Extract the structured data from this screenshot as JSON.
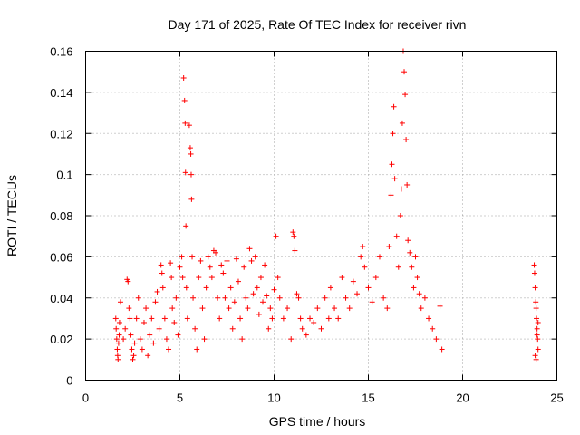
{
  "chart_data": {
    "type": "scatter",
    "title": "Day 171 of 2025, Rate Of TEC Index for receiver rivn",
    "xlabel": "GPS time / hours",
    "ylabel": "ROTI / TECUs",
    "xlim": [
      0,
      25
    ],
    "ylim": [
      0,
      0.16
    ],
    "xticks": [
      0,
      5,
      10,
      15,
      20,
      25
    ],
    "yticks": [
      0,
      0.02,
      0.04,
      0.06,
      0.08,
      0.1,
      0.12,
      0.14,
      0.16
    ],
    "xtick_labels": [
      "0",
      "5",
      "10",
      "15",
      "20",
      "25"
    ],
    "ytick_labels": [
      "0",
      "0.02",
      "0.04",
      "0.06",
      "0.08",
      "0.1",
      "0.12",
      "0.14",
      "0.16"
    ],
    "grid": true,
    "marker": "+",
    "color": "#ff0000",
    "series": [
      {
        "name": "ROTI",
        "points": [
          [
            1.6,
            0.03
          ],
          [
            1.62,
            0.025
          ],
          [
            1.65,
            0.02
          ],
          [
            1.68,
            0.015
          ],
          [
            1.7,
            0.012
          ],
          [
            1.72,
            0.01
          ],
          [
            1.75,
            0.018
          ],
          [
            1.78,
            0.022
          ],
          [
            1.8,
            0.028
          ],
          [
            1.85,
            0.038
          ],
          [
            2.0,
            0.02
          ],
          [
            2.1,
            0.025
          ],
          [
            2.2,
            0.049
          ],
          [
            2.25,
            0.048
          ],
          [
            2.3,
            0.035
          ],
          [
            2.35,
            0.03
          ],
          [
            2.4,
            0.022
          ],
          [
            2.45,
            0.015
          ],
          [
            2.5,
            0.01
          ],
          [
            2.55,
            0.012
          ],
          [
            2.6,
            0.018
          ],
          [
            2.7,
            0.03
          ],
          [
            2.8,
            0.04
          ],
          [
            2.9,
            0.02
          ],
          [
            3.0,
            0.015
          ],
          [
            3.1,
            0.028
          ],
          [
            3.2,
            0.035
          ],
          [
            3.3,
            0.012
          ],
          [
            3.4,
            0.022
          ],
          [
            3.5,
            0.03
          ],
          [
            3.6,
            0.018
          ],
          [
            3.7,
            0.038
          ],
          [
            3.8,
            0.043
          ],
          [
            3.9,
            0.025
          ],
          [
            4.0,
            0.056
          ],
          [
            4.05,
            0.052
          ],
          [
            4.1,
            0.045
          ],
          [
            4.2,
            0.03
          ],
          [
            4.3,
            0.02
          ],
          [
            4.4,
            0.015
          ],
          [
            4.5,
            0.057
          ],
          [
            4.55,
            0.05
          ],
          [
            4.6,
            0.035
          ],
          [
            4.7,
            0.028
          ],
          [
            4.8,
            0.04
          ],
          [
            4.9,
            0.022
          ],
          [
            5.0,
            0.055
          ],
          [
            5.1,
            0.06
          ],
          [
            5.15,
            0.05
          ],
          [
            5.2,
            0.147
          ],
          [
            5.25,
            0.136
          ],
          [
            5.28,
            0.125
          ],
          [
            5.3,
            0.101
          ],
          [
            5.32,
            0.075
          ],
          [
            5.35,
            0.045
          ],
          [
            5.4,
            0.03
          ],
          [
            5.5,
            0.124
          ],
          [
            5.55,
            0.113
          ],
          [
            5.58,
            0.11
          ],
          [
            5.6,
            0.1
          ],
          [
            5.62,
            0.088
          ],
          [
            5.65,
            0.06
          ],
          [
            5.7,
            0.04
          ],
          [
            5.8,
            0.025
          ],
          [
            5.9,
            0.015
          ],
          [
            6.0,
            0.05
          ],
          [
            6.1,
            0.058
          ],
          [
            6.2,
            0.035
          ],
          [
            6.3,
            0.02
          ],
          [
            6.4,
            0.045
          ],
          [
            6.5,
            0.06
          ],
          [
            6.6,
            0.055
          ],
          [
            6.7,
            0.05
          ],
          [
            6.8,
            0.063
          ],
          [
            6.9,
            0.062
          ],
          [
            7.0,
            0.04
          ],
          [
            7.1,
            0.03
          ],
          [
            7.2,
            0.056
          ],
          [
            7.3,
            0.052
          ],
          [
            7.4,
            0.04
          ],
          [
            7.5,
            0.058
          ],
          [
            7.6,
            0.035
          ],
          [
            7.7,
            0.045
          ],
          [
            7.8,
            0.025
          ],
          [
            7.9,
            0.038
          ],
          [
            8.0,
            0.059
          ],
          [
            8.1,
            0.048
          ],
          [
            8.2,
            0.03
          ],
          [
            8.3,
            0.02
          ],
          [
            8.4,
            0.055
          ],
          [
            8.5,
            0.04
          ],
          [
            8.6,
            0.035
          ],
          [
            8.7,
            0.064
          ],
          [
            8.8,
            0.058
          ],
          [
            8.9,
            0.042
          ],
          [
            9.0,
            0.06
          ],
          [
            9.1,
            0.045
          ],
          [
            9.2,
            0.032
          ],
          [
            9.3,
            0.05
          ],
          [
            9.4,
            0.038
          ],
          [
            9.5,
            0.056
          ],
          [
            9.6,
            0.041
          ],
          [
            9.7,
            0.025
          ],
          [
            9.8,
            0.035
          ],
          [
            9.9,
            0.03
          ],
          [
            10.0,
            0.044
          ],
          [
            10.1,
            0.07
          ],
          [
            10.2,
            0.05
          ],
          [
            10.3,
            0.04
          ],
          [
            10.5,
            0.03
          ],
          [
            10.7,
            0.035
          ],
          [
            10.9,
            0.02
          ],
          [
            11.0,
            0.072
          ],
          [
            11.05,
            0.07
          ],
          [
            11.1,
            0.063
          ],
          [
            11.2,
            0.042
          ],
          [
            11.3,
            0.04
          ],
          [
            11.4,
            0.03
          ],
          [
            11.5,
            0.025
          ],
          [
            11.7,
            0.022
          ],
          [
            11.9,
            0.03
          ],
          [
            12.1,
            0.028
          ],
          [
            12.3,
            0.035
          ],
          [
            12.5,
            0.025
          ],
          [
            12.7,
            0.04
          ],
          [
            12.9,
            0.03
          ],
          [
            13.0,
            0.045
          ],
          [
            13.2,
            0.035
          ],
          [
            13.4,
            0.03
          ],
          [
            13.6,
            0.05
          ],
          [
            13.8,
            0.04
          ],
          [
            14.0,
            0.035
          ],
          [
            14.2,
            0.048
          ],
          [
            14.4,
            0.042
          ],
          [
            14.6,
            0.06
          ],
          [
            14.7,
            0.065
          ],
          [
            14.8,
            0.055
          ],
          [
            15.0,
            0.045
          ],
          [
            15.2,
            0.038
          ],
          [
            15.4,
            0.05
          ],
          [
            15.6,
            0.06
          ],
          [
            15.8,
            0.04
          ],
          [
            16.0,
            0.035
          ],
          [
            16.1,
            0.065
          ],
          [
            16.2,
            0.09
          ],
          [
            16.25,
            0.105
          ],
          [
            16.3,
            0.12
          ],
          [
            16.35,
            0.133
          ],
          [
            16.4,
            0.098
          ],
          [
            16.5,
            0.07
          ],
          [
            16.6,
            0.055
          ],
          [
            16.7,
            0.08
          ],
          [
            16.75,
            0.093
          ],
          [
            16.8,
            0.125
          ],
          [
            16.85,
            0.16
          ],
          [
            16.9,
            0.15
          ],
          [
            16.95,
            0.139
          ],
          [
            17.0,
            0.117
          ],
          [
            17.05,
            0.095
          ],
          [
            17.1,
            0.068
          ],
          [
            17.2,
            0.062
          ],
          [
            17.3,
            0.055
          ],
          [
            17.4,
            0.045
          ],
          [
            17.5,
            0.06
          ],
          [
            17.6,
            0.05
          ],
          [
            17.7,
            0.042
          ],
          [
            17.8,
            0.035
          ],
          [
            18.0,
            0.04
          ],
          [
            18.2,
            0.03
          ],
          [
            18.4,
            0.025
          ],
          [
            18.6,
            0.02
          ],
          [
            18.8,
            0.036
          ],
          [
            18.9,
            0.015
          ],
          [
            23.8,
            0.056
          ],
          [
            23.82,
            0.052
          ],
          [
            23.85,
            0.045
          ],
          [
            23.88,
            0.038
          ],
          [
            23.9,
            0.035
          ],
          [
            23.92,
            0.03
          ],
          [
            23.95,
            0.025
          ],
          [
            23.98,
            0.02
          ],
          [
            24.0,
            0.015
          ],
          [
            23.85,
            0.012
          ],
          [
            23.9,
            0.01
          ],
          [
            23.95,
            0.022
          ],
          [
            24.0,
            0.028
          ]
        ]
      }
    ]
  }
}
